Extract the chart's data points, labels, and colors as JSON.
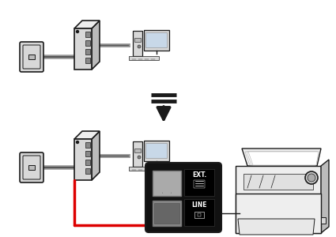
{
  "bg_color": "#ffffff",
  "dark": "#1a1a1a",
  "gray_fill": "#d8d8d8",
  "gray_mid": "#bbbbbb",
  "gray_dark": "#888888",
  "gray_light": "#eeeeee",
  "cable_gray": "#999999",
  "cable_red": "#dd0000",
  "panel_bg": "#111111",
  "white": "#ffffff",
  "ext_text": "EXT.",
  "line_text": "LINE",
  "lw_border": 1.0,
  "lw_thick": 1.5
}
